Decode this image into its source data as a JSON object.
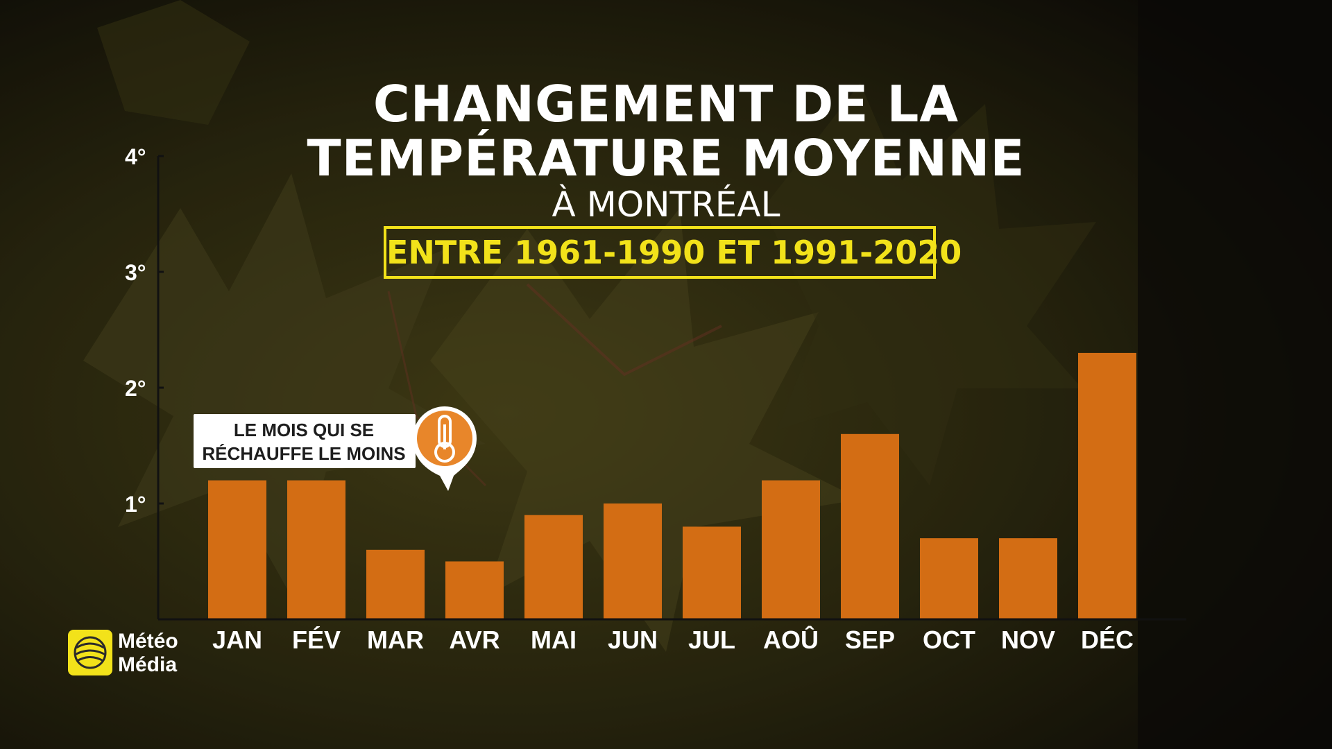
{
  "header": {
    "title_line1": "CHANGEMENT DE LA",
    "title_line2": "TEMPÉRATURE MOYENNE",
    "subtitle": "À MONTRÉAL",
    "period": "ENTRE 1961-1990 ET 1991-2020"
  },
  "callout": {
    "line1": "LE MOIS QUI SE",
    "line2": "RÉCHAUFFE LE MOINS",
    "icon": "thermometer-icon"
  },
  "logo": {
    "line1": "Météo",
    "line2": "Média",
    "icon": "globe-icon"
  },
  "colors": {
    "bar": "#d36d14",
    "accent": "#f2e21a",
    "callout_icon": "#e8862a"
  },
  "chart_data": {
    "type": "bar",
    "categories": [
      "JAN",
      "FÉV",
      "MAR",
      "AVR",
      "MAI",
      "JUN",
      "JUL",
      "AOÛ",
      "SEP",
      "OCT",
      "NOV",
      "DÉC"
    ],
    "values": [
      1.2,
      1.2,
      0.6,
      0.5,
      0.9,
      1.0,
      0.8,
      1.2,
      1.6,
      0.7,
      0.7,
      2.3
    ],
    "yticks": [
      "1°",
      "2°",
      "3°",
      "4°"
    ],
    "ytick_values": [
      1,
      2,
      3,
      4
    ],
    "ylim": [
      0,
      4
    ],
    "title": "CHANGEMENT DE LA TEMPÉRATURE MOYENNE",
    "subtitle": "À MONTRÉAL",
    "xlabel": "",
    "ylabel": "",
    "grid": false
  }
}
